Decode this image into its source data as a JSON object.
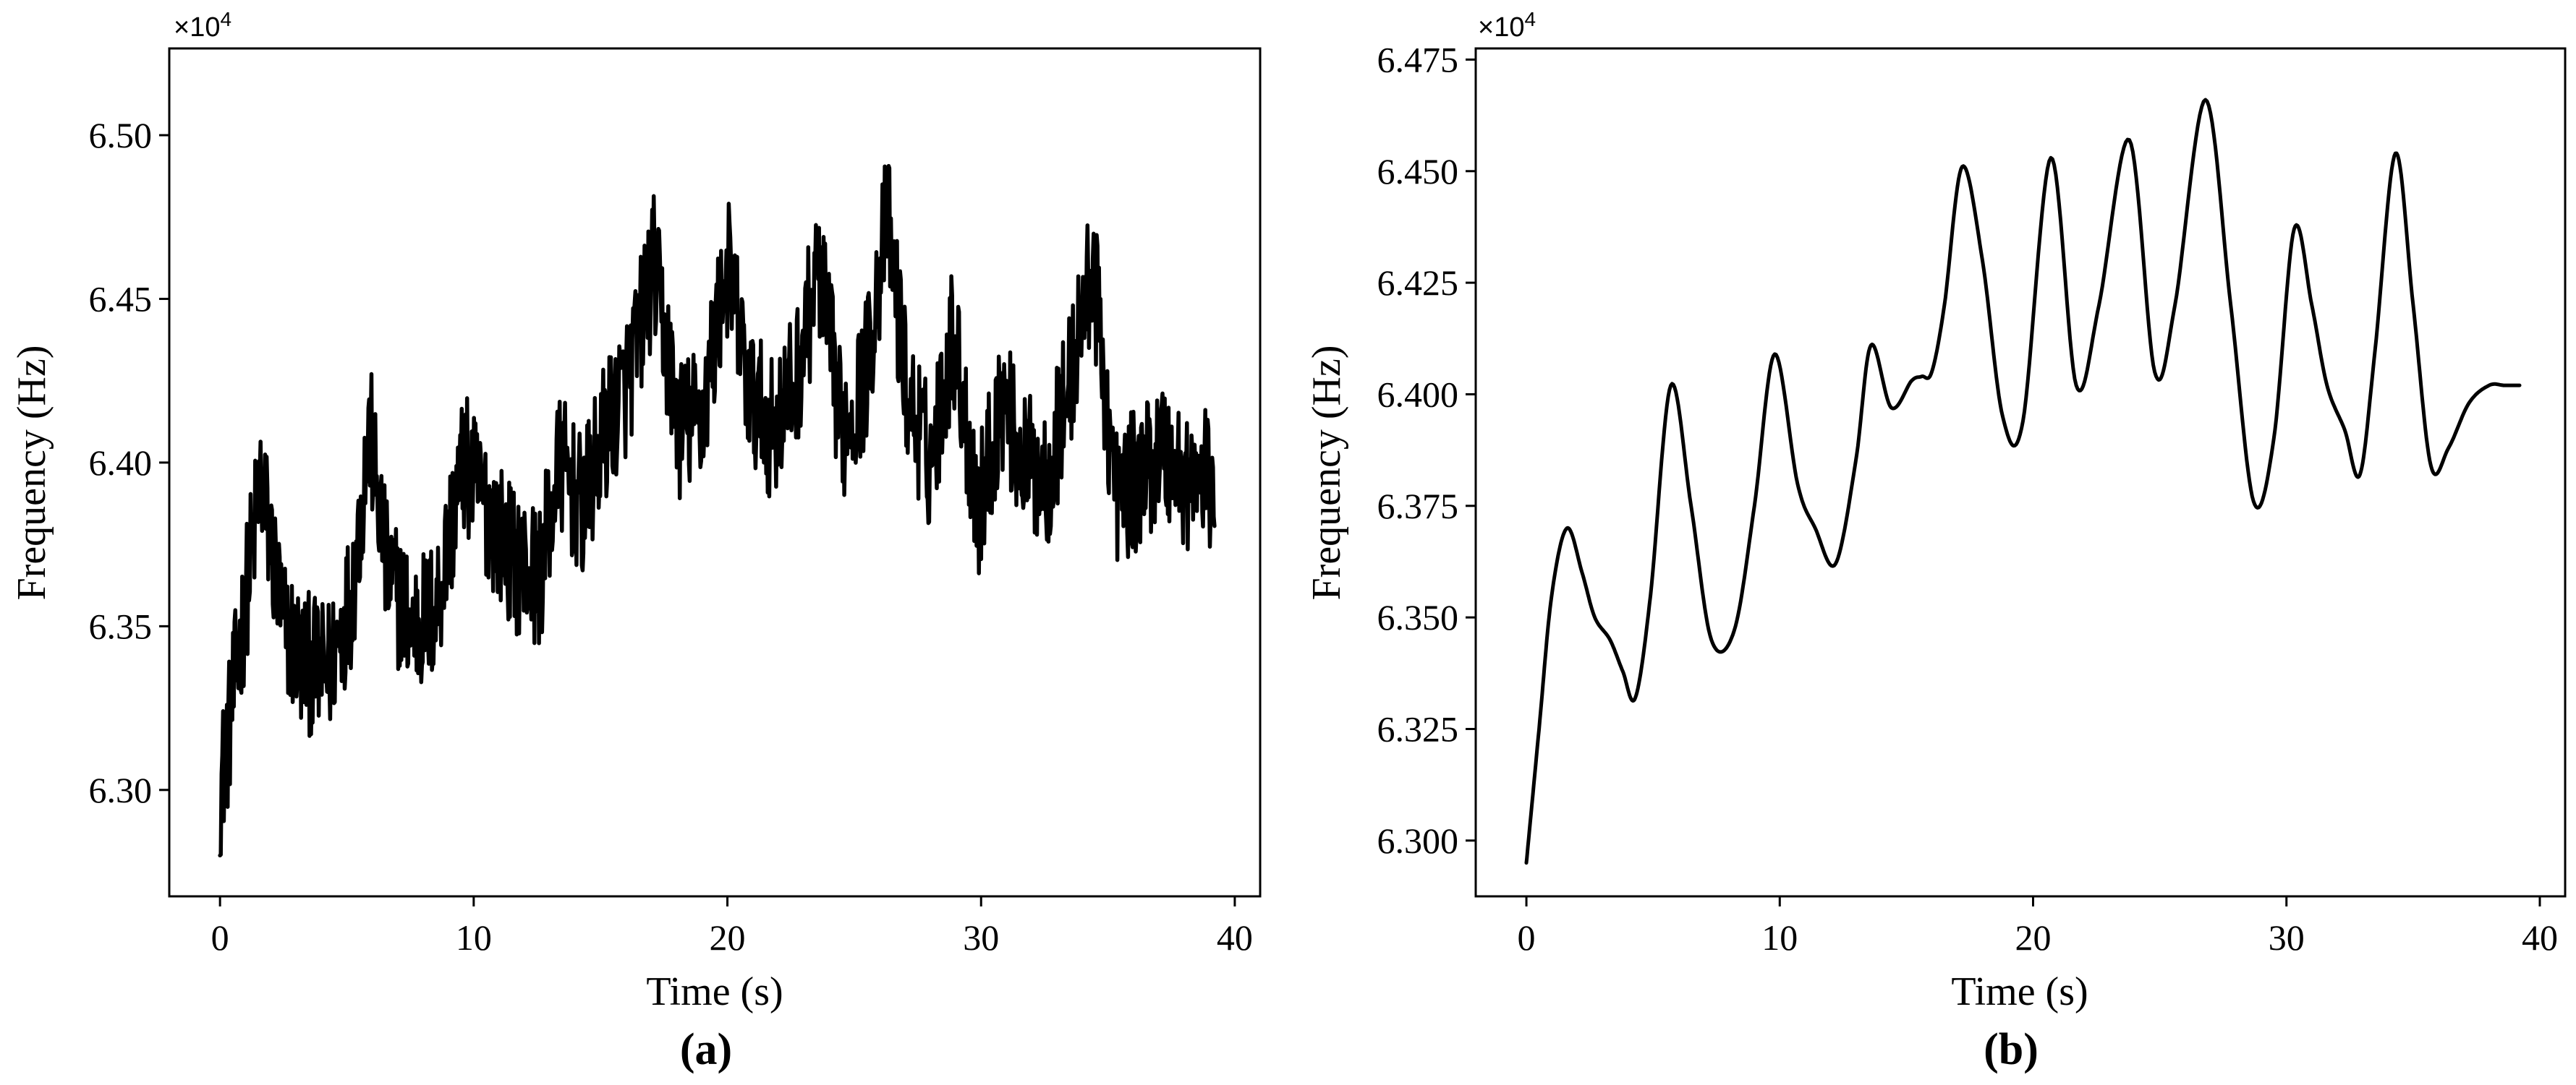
{
  "chart_data": [
    {
      "type": "line",
      "panel_label": "(a)",
      "xlabel": "Time (s)",
      "ylabel": "Frequency (Hz)",
      "y_multiplier": "×10",
      "y_multiplier_exp": "4",
      "xlim": [
        -2,
        41
      ],
      "ylim": [
        6.2675,
        6.5265
      ],
      "xticks": [
        0,
        10,
        20,
        30,
        40
      ],
      "xtick_labels": [
        "0",
        "10",
        "20",
        "30",
        "40"
      ],
      "yticks": [
        6.3,
        6.35,
        6.4,
        6.45,
        6.5
      ],
      "ytick_labels": [
        "6.30",
        "6.35",
        "6.40",
        "6.45",
        "6.50"
      ],
      "grid": false,
      "series": [
        {
          "style": "noisy",
          "x": [
            0,
            0.3,
            0.8,
            1.6,
            2.5,
            3.2,
            4.2,
            5.2,
            5.9,
            6.6,
            7.6,
            8.5,
            9.6,
            10.6,
            11.6,
            12.6,
            13.4,
            14.3,
            15.2,
            16.1,
            17.1,
            18.1,
            19.0,
            20.0,
            20.9,
            21.8,
            22.7,
            23.6,
            24.5,
            25.4,
            26.3,
            27.1,
            28.0,
            28.9,
            29.9,
            30.8,
            31.7,
            32.6,
            33.5,
            34.4,
            35.3,
            36.2,
            37.1,
            38.0,
            39.2
          ],
          "y": [
            6.3,
            6.315,
            6.345,
            6.395,
            6.35,
            6.34,
            6.335,
            6.36,
            6.41,
            6.365,
            6.35,
            6.355,
            6.4,
            6.385,
            6.37,
            6.365,
            6.4,
            6.385,
            6.41,
            6.425,
            6.46,
            6.41,
            6.415,
            6.46,
            6.42,
            6.41,
            6.425,
            6.46,
            6.41,
            6.425,
            6.475,
            6.42,
            6.4,
            6.44,
            6.385,
            6.42,
            6.4,
            6.395,
            6.425,
            6.46,
            6.39,
            6.395,
            6.405,
            6.395,
            6.395
          ],
          "noise_amplitude": 0.022,
          "min": 6.28,
          "max": 6.515
        }
      ]
    },
    {
      "type": "line",
      "panel_label": "(b)",
      "xlabel": "Time (s)",
      "ylabel": "Frequency (Hz)",
      "y_multiplier": "×10",
      "y_multiplier_exp": "4",
      "xlim": [
        -2,
        41
      ],
      "ylim": [
        6.2875,
        6.4775
      ],
      "xticks": [
        0,
        10,
        20,
        30,
        40
      ],
      "xtick_labels": [
        "0",
        "10",
        "20",
        "30",
        "40"
      ],
      "yticks": [
        6.3,
        6.325,
        6.35,
        6.375,
        6.4,
        6.425,
        6.45,
        6.475
      ],
      "ytick_labels": [
        "6.300",
        "6.325",
        "6.350",
        "6.375",
        "6.400",
        "6.425",
        "6.450",
        "6.475"
      ],
      "grid": false,
      "series": [
        {
          "style": "smooth",
          "x": [
            0,
            0.5,
            1.0,
            1.6,
            2.2,
            2.7,
            3.3,
            3.8,
            4.3,
            4.9,
            5.7,
            6.5,
            7.3,
            8.2,
            9.0,
            9.8,
            10.7,
            11.4,
            12.2,
            13.0,
            13.6,
            14.4,
            15.2,
            15.6,
            16.0,
            16.5,
            17.2,
            18.0,
            18.8,
            19.6,
            20.7,
            21.7,
            22.6,
            23.8,
            24.8,
            25.6,
            26.8,
            27.8,
            28.7,
            29.5,
            30.3,
            31.0,
            31.6,
            32.3,
            32.9,
            33.5,
            34.3,
            35.0,
            35.7,
            36.4,
            37.2,
            38.0,
            38.6,
            39.2
          ],
          "y": [
            6.295,
            6.325,
            6.355,
            6.37,
            6.36,
            6.35,
            6.345,
            6.338,
            6.332,
            6.355,
            6.402,
            6.375,
            6.345,
            6.347,
            6.375,
            6.409,
            6.38,
            6.37,
            6.362,
            6.385,
            6.411,
            6.397,
            6.403,
            6.404,
            6.405,
            6.42,
            6.451,
            6.43,
            6.395,
            6.394,
            6.453,
            6.402,
            6.42,
            6.457,
            6.405,
            6.42,
            6.466,
            6.42,
            6.376,
            6.39,
            6.437,
            6.42,
            6.402,
            6.392,
            6.382,
            6.41,
            6.454,
            6.42,
            6.384,
            6.388,
            6.398,
            6.402,
            6.402,
            6.402
          ]
        }
      ]
    }
  ]
}
